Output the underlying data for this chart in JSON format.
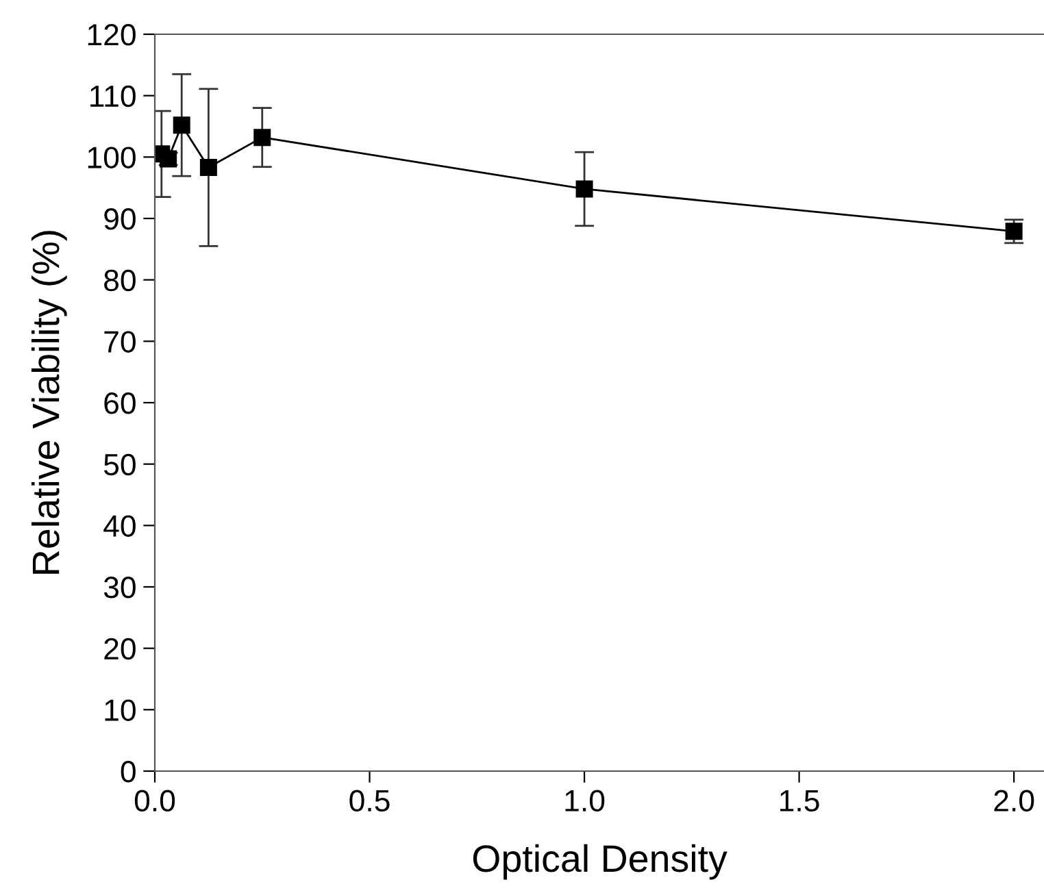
{
  "chart_data": {
    "type": "line",
    "xlabel": "Optical Density",
    "ylabel": "Relative Viability (%)",
    "x": [
      0.0156,
      0.0313,
      0.0625,
      0.125,
      0.25,
      1.0,
      2.0
    ],
    "series": [
      {
        "color": "#000000",
        "values": [
          100.5,
          99.7,
          105.2,
          98.3,
          103.2,
          94.8,
          87.9
        ],
        "errors": [
          7.0,
          1.0,
          8.3,
          12.8,
          4.8,
          6.0,
          1.9
        ]
      }
    ],
    "xlim": [
      0,
      2.07
    ],
    "xticks": [
      {
        "value": 0,
        "label": "0.0"
      },
      {
        "value": 0.5,
        "label": "0.5"
      },
      {
        "value": 1.0,
        "label": "1.0"
      },
      {
        "value": 1.5,
        "label": "1.5"
      },
      {
        "value": 2.0,
        "label": "2.0"
      }
    ],
    "ylim": [
      0,
      120
    ],
    "yticks": [
      0,
      10,
      20,
      30,
      40,
      50,
      60,
      70,
      80,
      90,
      100,
      110,
      120
    ],
    "marker": "square",
    "line_style": "solid",
    "grid": false,
    "legend": false
  }
}
